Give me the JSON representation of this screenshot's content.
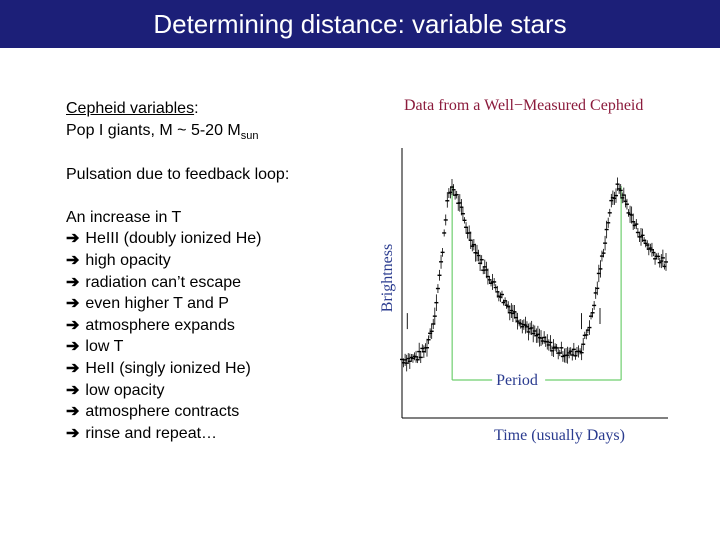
{
  "slide": {
    "title": "Determining distance: variable stars"
  },
  "text": {
    "heading": "Cepheid variables",
    "heading_colon": ":",
    "pop_line_prefix": "Pop I giants,   M ~ 5-20 M",
    "pop_line_sub": "sun",
    "pulsation": "Pulsation due to feedback loop:",
    "intro": "An increase in T",
    "arrow_glyph": "➔",
    "steps": [
      "HeIII  (doubly ionized He)",
      "high opacity",
      "radiation can’t escape",
      "even higher T and P",
      "atmosphere expands",
      "low T",
      "HeII  (singly ionized He)",
      "low opacity",
      "atmosphere contracts",
      "rinse and repeat…"
    ]
  },
  "chart_data": {
    "type": "scatter",
    "title": "Data from a Well−Measured Cepheid",
    "xlabel": "Time (usually Days)",
    "ylabel": "Brightness",
    "period_label": "Period",
    "ylim": [
      0,
      1
    ],
    "xlim": [
      0,
      1
    ],
    "ticks": "none",
    "peaks_x": [
      0.19,
      0.83
    ],
    "curve": [
      [
        0.0,
        0.23
      ],
      [
        0.03,
        0.23
      ],
      [
        0.06,
        0.24
      ],
      [
        0.09,
        0.27
      ],
      [
        0.12,
        0.38
      ],
      [
        0.15,
        0.62
      ],
      [
        0.17,
        0.84
      ],
      [
        0.19,
        0.91
      ],
      [
        0.21,
        0.86
      ],
      [
        0.25,
        0.73
      ],
      [
        0.3,
        0.61
      ],
      [
        0.35,
        0.52
      ],
      [
        0.4,
        0.44
      ],
      [
        0.45,
        0.38
      ],
      [
        0.5,
        0.33
      ],
      [
        0.55,
        0.29
      ],
      [
        0.6,
        0.26
      ],
      [
        0.64,
        0.25
      ],
      [
        0.68,
        0.27
      ],
      [
        0.72,
        0.4
      ],
      [
        0.76,
        0.64
      ],
      [
        0.79,
        0.83
      ],
      [
        0.82,
        0.91
      ],
      [
        0.85,
        0.84
      ],
      [
        0.88,
        0.76
      ],
      [
        0.92,
        0.69
      ],
      [
        0.96,
        0.64
      ],
      [
        1.0,
        0.6
      ]
    ],
    "colors": {
      "points": "#000000",
      "axes": "#000000",
      "period_lines": "#6fcf6f",
      "title": "#8b1b3c",
      "axis_labels": "#2a3b8f"
    }
  }
}
